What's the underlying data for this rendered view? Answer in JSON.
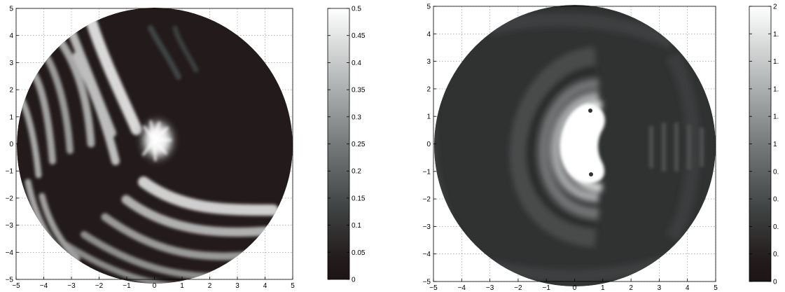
{
  "chart_data": [
    {
      "type": "heatmap",
      "xlim": [
        -5,
        5
      ],
      "ylim": [
        -5,
        5
      ],
      "x_ticks": [
        "−5",
        "−4",
        "−3",
        "−2",
        "−1",
        "0",
        "1",
        "2",
        "3",
        "4",
        "5"
      ],
      "y_ticks": [
        "5",
        "4",
        "3",
        "2",
        "1",
        "0",
        "−1",
        "−2",
        "−3",
        "−4",
        "−5"
      ],
      "grid": true,
      "colormap": "gray",
      "clim": [
        0,
        0.5
      ],
      "colorbar_ticks": [
        "0.5",
        "0.45",
        "0.4",
        "0.35",
        "0.3",
        "0.25",
        "0.2",
        "0.15",
        "0.1",
        "0.05",
        "0"
      ],
      "domain": "disk of radius 5 centered at origin",
      "pattern": "wave fronts arriving from upper-left, bright scatterer near (0.3, 0.3)"
    },
    {
      "type": "heatmap",
      "xlim": [
        -5,
        5
      ],
      "ylim": [
        -5,
        5
      ],
      "x_ticks": [
        "−5",
        "−4",
        "−3",
        "−2",
        "−1",
        "0",
        "1",
        "2",
        "3",
        "4",
        "5"
      ],
      "y_ticks": [
        "5",
        "4",
        "3",
        "2",
        "1",
        "0",
        "−1",
        "−2",
        "−3",
        "−4",
        "−5"
      ],
      "grid": true,
      "colormap": "gray",
      "clim": [
        0,
        2
      ],
      "colorbar_ticks": [
        "2",
        "1.",
        "1.",
        "1.",
        "1.",
        "1",
        "0.",
        "0.",
        "0.",
        "0.",
        "0"
      ],
      "domain": "disk of radius 5 centered at origin",
      "pattern": "kidney-shaped bright region near (0.5, 0) with concentric rings"
    }
  ]
}
